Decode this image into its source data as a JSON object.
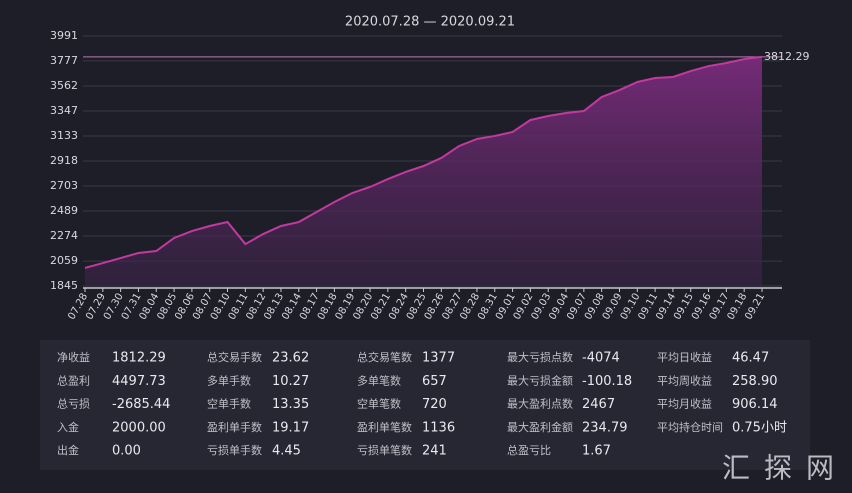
{
  "chart_data": {
    "type": "area",
    "title": "2020.07.28 — 2020.09.21",
    "categories": [
      "07.28",
      "07.29",
      "07.30",
      "07.31",
      "08.04",
      "08.05",
      "08.06",
      "08.07",
      "08.10",
      "08.11",
      "08.12",
      "08.13",
      "08.14",
      "08.17",
      "08.18",
      "08.19",
      "08.20",
      "08.21",
      "08.24",
      "08.25",
      "08.26",
      "08.27",
      "08.28",
      "08.31",
      "09.01",
      "09.02",
      "09.03",
      "09.04",
      "09.07",
      "09.08",
      "09.09",
      "09.10",
      "09.11",
      "09.14",
      "09.15",
      "09.16",
      "09.17",
      "09.18",
      "09.21"
    ],
    "values": [
      2000,
      2042,
      2085,
      2128,
      2145,
      2257,
      2317,
      2360,
      2394,
      2205,
      2291,
      2360,
      2394,
      2480,
      2566,
      2643,
      2695,
      2763,
      2824,
      2875,
      2944,
      3047,
      3107,
      3133,
      3167,
      3270,
      3304,
      3330,
      3347,
      3467,
      3527,
      3596,
      3630,
      3639,
      3690,
      3733,
      3759,
      3793,
      3812.29
    ],
    "color": "#c23a9e",
    "ylim": [
      1845,
      3991
    ],
    "yticks": [
      1845,
      2059,
      2274,
      2489,
      2703,
      2918,
      3133,
      3347,
      3562,
      3777,
      3991
    ],
    "grid": true
  },
  "stats": {
    "columns": [
      [
        {
          "label": "净收益",
          "value": "1812.29"
        },
        {
          "label": "总盈利",
          "value": "4497.73"
        },
        {
          "label": "总亏损",
          "value": "-2685.44"
        },
        {
          "label": "入金",
          "value": "2000.00"
        },
        {
          "label": "出金",
          "value": "0.00"
        }
      ],
      [
        {
          "label": "总交易手数",
          "value": "23.62"
        },
        {
          "label": "多单手数",
          "value": "10.27"
        },
        {
          "label": "空单手数",
          "value": "13.35"
        },
        {
          "label": "盈利单手数",
          "value": "19.17"
        },
        {
          "label": "亏损单手数",
          "value": "4.45"
        }
      ],
      [
        {
          "label": "总交易笔数",
          "value": "1377"
        },
        {
          "label": "多单笔数",
          "value": "657"
        },
        {
          "label": "空单笔数",
          "value": "720"
        },
        {
          "label": "盈利单笔数",
          "value": "1136"
        },
        {
          "label": "亏损单笔数",
          "value": "241"
        }
      ],
      [
        {
          "label": "最大亏损点数",
          "value": "-4074"
        },
        {
          "label": "最大亏损金额",
          "value": "-100.18"
        },
        {
          "label": "最大盈利点数",
          "value": "2467"
        },
        {
          "label": "最大盈利金额",
          "value": "234.79"
        },
        {
          "label": "总盈亏比",
          "value": "1.67"
        }
      ],
      [
        {
          "label": "平均日收益",
          "value": "46.47"
        },
        {
          "label": "平均周收益",
          "value": "258.90"
        },
        {
          "label": "平均月收益",
          "value": "906.14"
        },
        {
          "label": "平均持仓时间",
          "value": "0.75小时"
        }
      ]
    ]
  },
  "watermark": "汇探网"
}
